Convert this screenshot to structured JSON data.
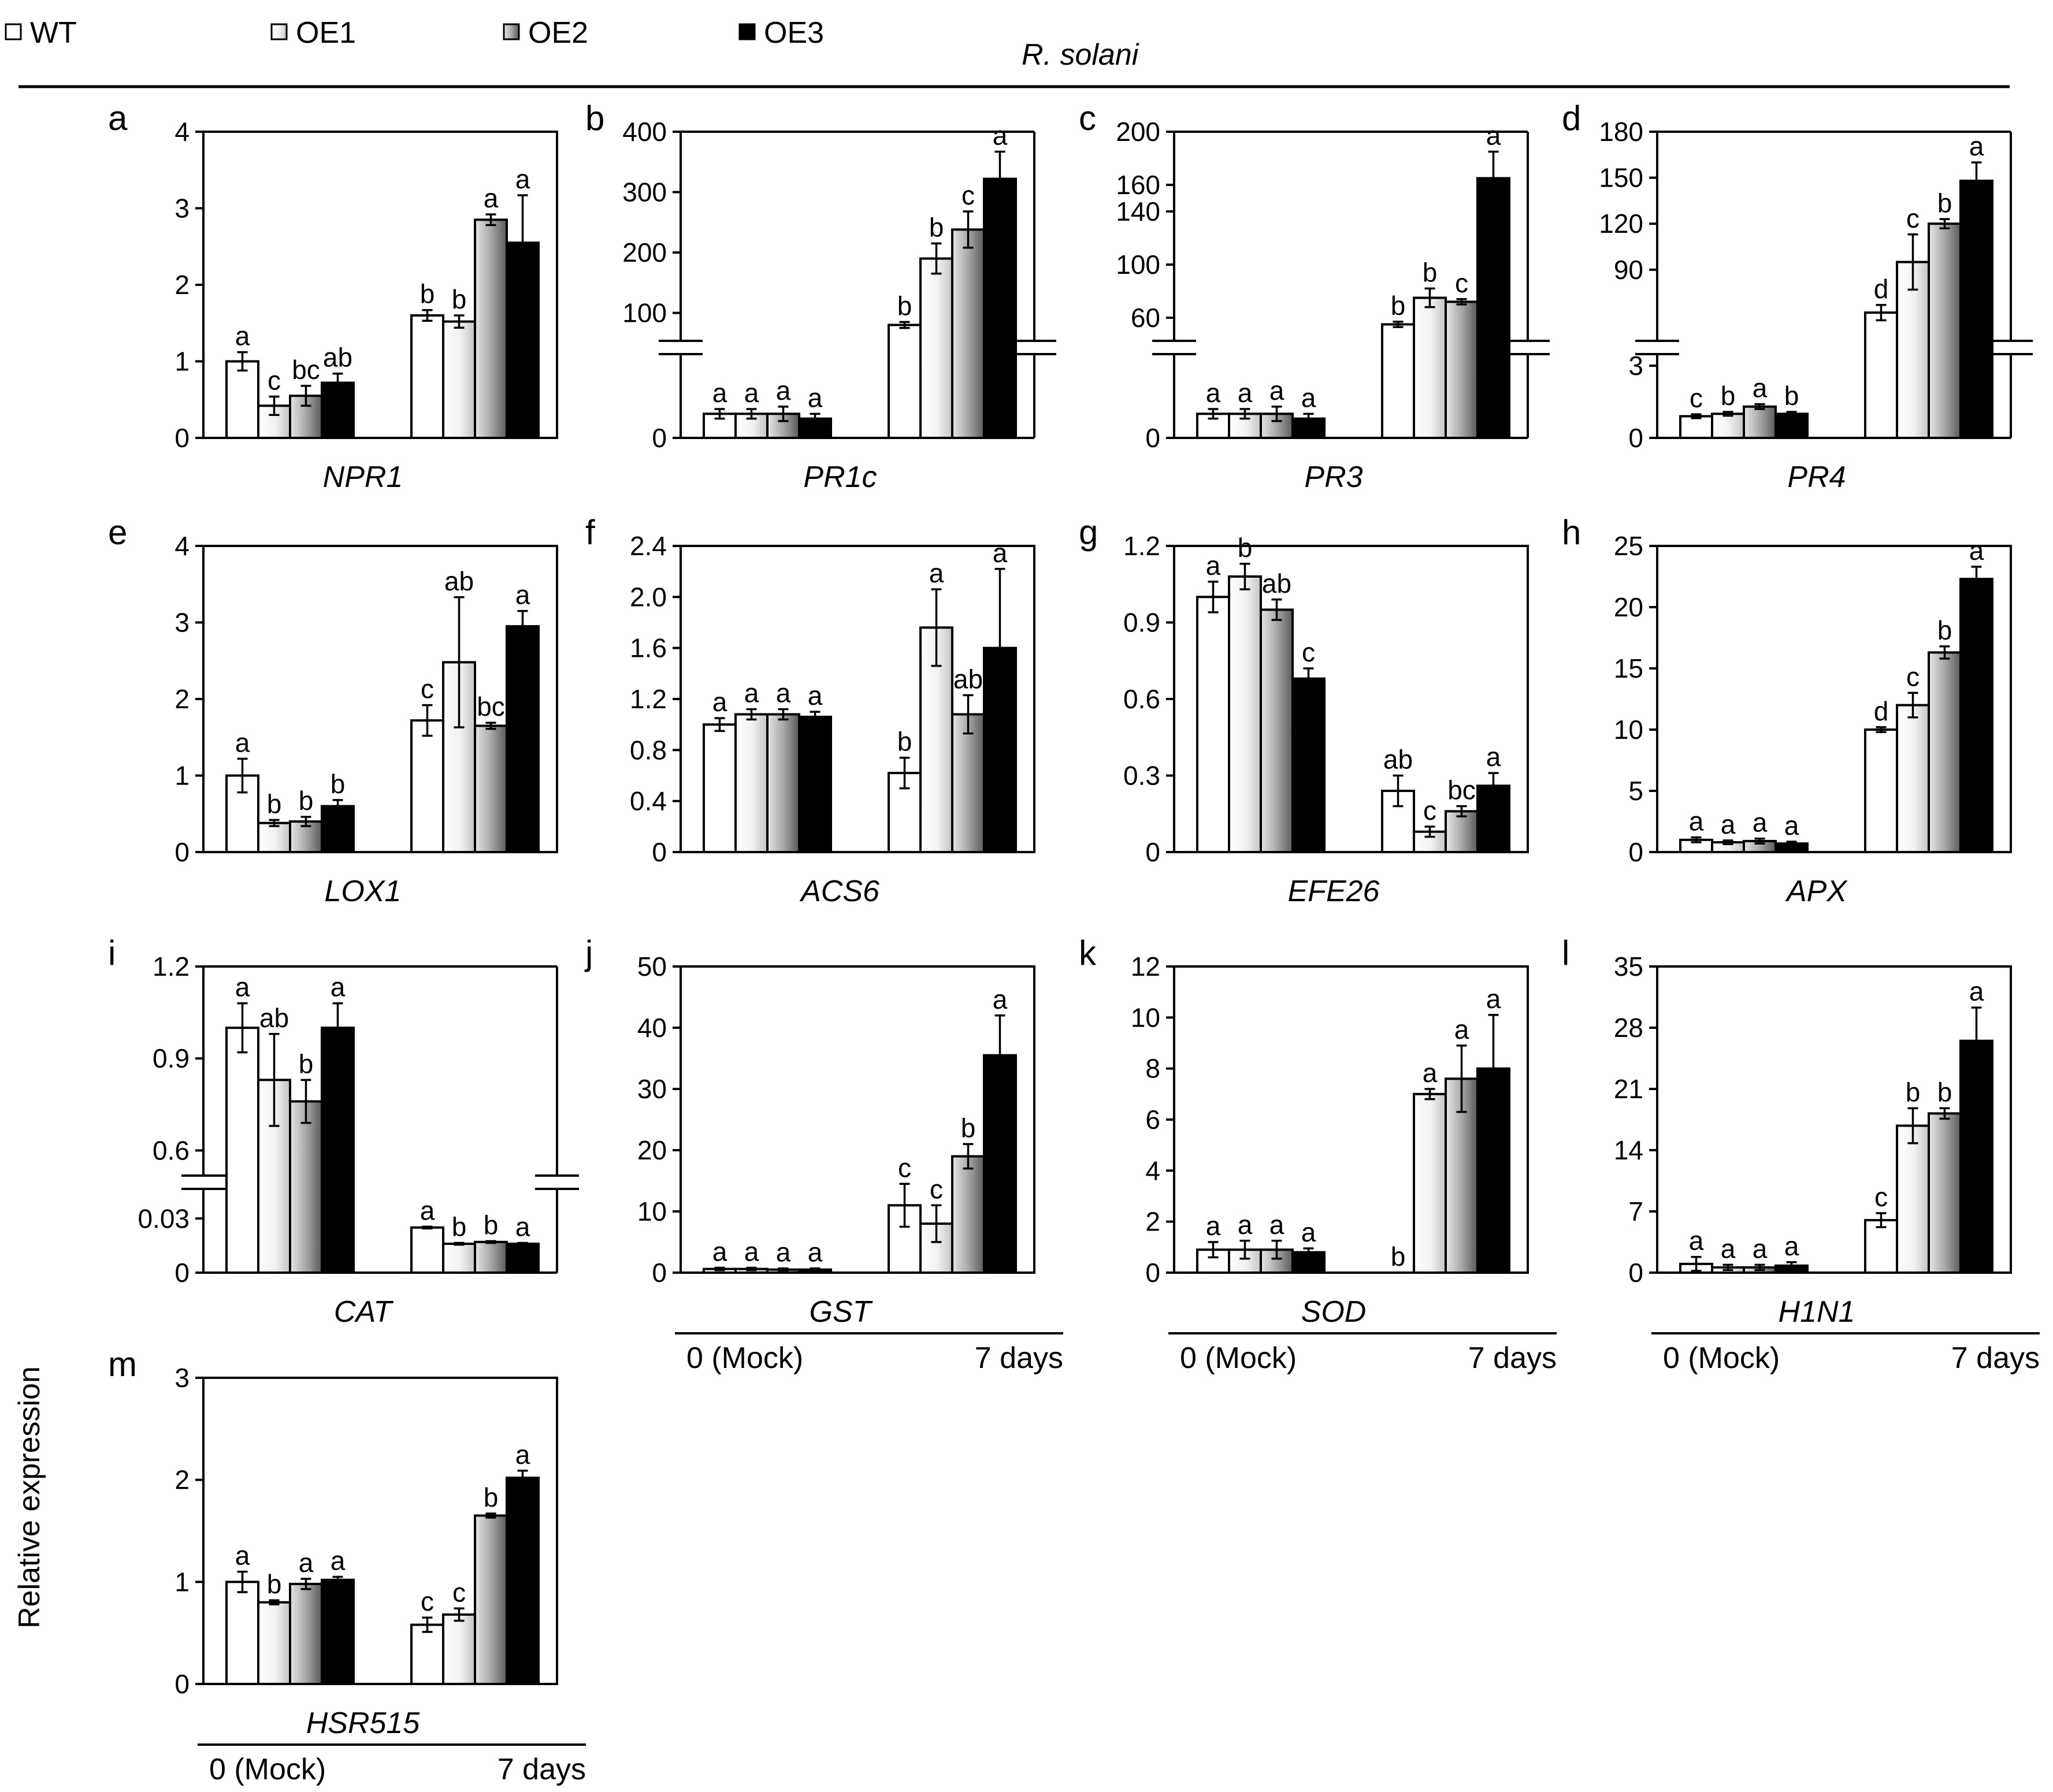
{
  "header": {
    "title": "R. solani",
    "y_axis_label": "Relative expression"
  },
  "legend": [
    {
      "name": "WT",
      "fill": "white-bar"
    },
    {
      "name": "OE1",
      "fill": "light-gradient-bar"
    },
    {
      "name": "OE2",
      "fill": "grey-gradient-bar"
    },
    {
      "name": "OE3",
      "fill": "black-bar"
    }
  ],
  "colors": {
    "wt": "#ffffff",
    "oe1_light": "#ffffff",
    "oe1_dark": "#c8c8c8",
    "oe2_light": "#e8e8e8",
    "oe2_dark": "#6e6e6e",
    "oe3": "#000000",
    "stroke": "#000000"
  },
  "time_labels": [
    "0 (Mock)",
    "7 days"
  ],
  "chart_data": [
    {
      "letter": "a",
      "type": "bar",
      "title": "NPR1",
      "categories": [
        "0 (Mock)",
        "7 days"
      ],
      "ylim": [
        0,
        4
      ],
      "yticks": [
        "0",
        "1",
        "2",
        "3",
        "4"
      ],
      "series": [
        {
          "name": "WT",
          "values": [
            1.0,
            1.6
          ],
          "errors": [
            0.12,
            0.07
          ],
          "letters": [
            "a",
            "b"
          ]
        },
        {
          "name": "OE1",
          "values": [
            0.42,
            1.52
          ],
          "errors": [
            0.12,
            0.08
          ],
          "letters": [
            "c",
            "b"
          ]
        },
        {
          "name": "OE2",
          "values": [
            0.55,
            2.85
          ],
          "errors": [
            0.13,
            0.07
          ],
          "letters": [
            "bc",
            "a"
          ]
        },
        {
          "name": "OE3",
          "values": [
            0.72,
            2.55
          ],
          "errors": [
            0.12,
            0.62
          ],
          "letters": [
            "ab",
            "a"
          ]
        }
      ]
    },
    {
      "letter": "b",
      "type": "bar",
      "title": "PR1c",
      "categories": [
        "0 (Mock)",
        "7 days"
      ],
      "broken_axis": true,
      "ylim_lower": [
        0,
        3
      ],
      "ylim_upper": [
        70,
        400
      ],
      "yticks_lower": [
        "0"
      ],
      "yticks_upper": [
        "100",
        "200",
        "300",
        "400"
      ],
      "series": [
        {
          "name": "WT",
          "values": [
            1.0,
            80
          ],
          "errors": [
            0.2,
            5
          ],
          "letters": [
            "a",
            "b"
          ]
        },
        {
          "name": "OE1",
          "values": [
            1.0,
            190
          ],
          "errors": [
            0.2,
            25
          ],
          "letters": [
            "a",
            "b"
          ]
        },
        {
          "name": "OE2",
          "values": [
            1.0,
            238
          ],
          "errors": [
            0.3,
            30
          ],
          "letters": [
            "a",
            "c"
          ]
        },
        {
          "name": "OE3",
          "values": [
            0.8,
            322
          ],
          "errors": [
            0.2,
            45
          ],
          "letters": [
            "a",
            "a"
          ]
        }
      ]
    },
    {
      "letter": "c",
      "type": "bar",
      "title": "PR3",
      "categories": [
        "0 (Mock)",
        "7 days"
      ],
      "broken_axis": true,
      "ylim_lower": [
        0,
        3
      ],
      "ylim_upper": [
        50,
        200
      ],
      "yticks_lower": [
        "0"
      ],
      "yticks_upper": [
        "60",
        "100",
        "140",
        "160",
        "200"
      ],
      "series": [
        {
          "name": "WT",
          "values": [
            1.0,
            55
          ],
          "errors": [
            0.2,
            2
          ],
          "letters": [
            "a",
            "b"
          ]
        },
        {
          "name": "OE1",
          "values": [
            1.0,
            75
          ],
          "errors": [
            0.2,
            7
          ],
          "letters": [
            "a",
            "b"
          ]
        },
        {
          "name": "OE2",
          "values": [
            1.0,
            72
          ],
          "errors": [
            0.3,
            2
          ],
          "letters": [
            "a",
            "c"
          ]
        },
        {
          "name": "OE3",
          "values": [
            0.8,
            165
          ],
          "errors": [
            0.2,
            20
          ],
          "letters": [
            "a",
            "a"
          ]
        }
      ]
    },
    {
      "letter": "d",
      "type": "bar",
      "title": "PR4",
      "categories": [
        "0 (Mock)",
        "7 days"
      ],
      "broken_axis": true,
      "ylim_lower": [
        0,
        3
      ],
      "ylim_upper": [
        50,
        180
      ],
      "yticks_lower": [
        "0",
        "3"
      ],
      "yticks_upper": [
        "90",
        "120",
        "150",
        "180"
      ],
      "series": [
        {
          "name": "WT",
          "values": [
            0.9,
            62
          ],
          "errors": [
            0.08,
            5
          ],
          "letters": [
            "c",
            "d"
          ]
        },
        {
          "name": "OE1",
          "values": [
            1.0,
            95
          ],
          "errors": [
            0.08,
            18
          ],
          "letters": [
            "b",
            "c"
          ]
        },
        {
          "name": "OE2",
          "values": [
            1.3,
            120
          ],
          "errors": [
            0.1,
            3
          ],
          "letters": [
            "a",
            "b"
          ]
        },
        {
          "name": "OE3",
          "values": [
            1.0,
            148
          ],
          "errors": [
            0.08,
            12
          ],
          "letters": [
            "b",
            "a"
          ]
        }
      ]
    },
    {
      "letter": "e",
      "type": "bar",
      "title": "LOX1",
      "categories": [
        "0 (Mock)",
        "7 days"
      ],
      "ylim": [
        0,
        4
      ],
      "yticks": [
        "0",
        "1",
        "2",
        "3",
        "4"
      ],
      "series": [
        {
          "name": "WT",
          "values": [
            1.0,
            1.72
          ],
          "errors": [
            0.22,
            0.2
          ],
          "letters": [
            "a",
            "c"
          ]
        },
        {
          "name": "OE1",
          "values": [
            0.38,
            2.48
          ],
          "errors": [
            0.04,
            0.85
          ],
          "letters": [
            "b",
            "ab"
          ]
        },
        {
          "name": "OE2",
          "values": [
            0.4,
            1.65
          ],
          "errors": [
            0.06,
            0.04
          ],
          "letters": [
            "b",
            "bc"
          ]
        },
        {
          "name": "OE3",
          "values": [
            0.6,
            2.95
          ],
          "errors": [
            0.08,
            0.2
          ],
          "letters": [
            "b",
            "a"
          ]
        }
      ]
    },
    {
      "letter": "f",
      "type": "bar",
      "title": "ACS6",
      "categories": [
        "0 (Mock)",
        "7 days"
      ],
      "ylim": [
        0,
        2.4
      ],
      "yticks": [
        "0",
        "0.4",
        "0.8",
        "1.2",
        "1.6",
        "2.0",
        "2.4"
      ],
      "series": [
        {
          "name": "WT",
          "values": [
            1.0,
            0.62
          ],
          "errors": [
            0.05,
            0.12
          ],
          "letters": [
            "a",
            "b"
          ]
        },
        {
          "name": "OE1",
          "values": [
            1.08,
            1.76
          ],
          "errors": [
            0.04,
            0.3
          ],
          "letters": [
            "a",
            "a"
          ]
        },
        {
          "name": "OE2",
          "values": [
            1.08,
            1.08
          ],
          "errors": [
            0.04,
            0.15
          ],
          "letters": [
            "a",
            "ab"
          ]
        },
        {
          "name": "OE3",
          "values": [
            1.06,
            1.6
          ],
          "errors": [
            0.04,
            0.62
          ],
          "letters": [
            "a",
            "a"
          ]
        }
      ]
    },
    {
      "letter": "g",
      "type": "bar",
      "title": "EFE26",
      "categories": [
        "0 (Mock)",
        "7 days"
      ],
      "ylim": [
        0,
        1.2
      ],
      "yticks": [
        "0",
        "0.3",
        "0.6",
        "0.9",
        "1.2"
      ],
      "series": [
        {
          "name": "WT",
          "values": [
            1.0,
            0.24
          ],
          "errors": [
            0.06,
            0.06
          ],
          "letters": [
            "a",
            "ab"
          ]
        },
        {
          "name": "OE1",
          "values": [
            1.08,
            0.08
          ],
          "errors": [
            0.05,
            0.02
          ],
          "letters": [
            "b",
            "c"
          ]
        },
        {
          "name": "OE2",
          "values": [
            0.95,
            0.16
          ],
          "errors": [
            0.04,
            0.02
          ],
          "letters": [
            "ab",
            "bc"
          ]
        },
        {
          "name": "OE3",
          "values": [
            0.68,
            0.26
          ],
          "errors": [
            0.04,
            0.05
          ],
          "letters": [
            "c",
            "a"
          ]
        }
      ]
    },
    {
      "letter": "h",
      "type": "bar",
      "title": "APX",
      "categories": [
        "0 (Mock)",
        "7 days"
      ],
      "ylim": [
        0,
        25
      ],
      "yticks": [
        "0",
        "5",
        "10",
        "15",
        "20",
        "25"
      ],
      "series": [
        {
          "name": "WT",
          "values": [
            1.0,
            10.0
          ],
          "errors": [
            0.2,
            0.2
          ],
          "letters": [
            "a",
            "d"
          ]
        },
        {
          "name": "OE1",
          "values": [
            0.8,
            12.0
          ],
          "errors": [
            0.15,
            1.0
          ],
          "letters": [
            "a",
            "c"
          ]
        },
        {
          "name": "OE2",
          "values": [
            0.9,
            16.3
          ],
          "errors": [
            0.2,
            0.5
          ],
          "letters": [
            "a",
            "b"
          ]
        },
        {
          "name": "OE3",
          "values": [
            0.7,
            22.3
          ],
          "errors": [
            0.15,
            1.0
          ],
          "letters": [
            "a",
            "a"
          ]
        }
      ]
    },
    {
      "letter": "i",
      "type": "bar",
      "title": "CAT",
      "categories": [
        "0 (Mock)",
        "7 days"
      ],
      "broken_axis": true,
      "ylim_lower": [
        0,
        0.04
      ],
      "ylim_upper": [
        0.55,
        1.2
      ],
      "yticks_lower": [
        "0",
        "0.03"
      ],
      "yticks_upper": [
        "0.6",
        "0.9",
        "1.2"
      ],
      "series": [
        {
          "name": "WT",
          "values": [
            1.0,
            0.025
          ],
          "errors": [
            0.08,
            0.0005
          ],
          "letters": [
            "a",
            "a"
          ]
        },
        {
          "name": "OE1",
          "values": [
            0.83,
            0.016
          ],
          "errors": [
            0.15,
            0.0005
          ],
          "letters": [
            "ab",
            "b"
          ]
        },
        {
          "name": "OE2",
          "values": [
            0.76,
            0.017
          ],
          "errors": [
            0.07,
            0.0005
          ],
          "letters": [
            "b",
            "b"
          ]
        },
        {
          "name": "OE3",
          "values": [
            1.0,
            0.016
          ],
          "errors": [
            0.08,
            0.0005
          ],
          "letters": [
            "a",
            "a"
          ]
        }
      ]
    },
    {
      "letter": "j",
      "type": "bar",
      "title": "GST",
      "categories": [
        "0 (Mock)",
        "7 days"
      ],
      "ylim": [
        0,
        50
      ],
      "yticks": [
        "0",
        "10",
        "20",
        "30",
        "40",
        "50"
      ],
      "series": [
        {
          "name": "WT",
          "values": [
            0.6,
            11.0
          ],
          "errors": [
            0.2,
            3.5
          ],
          "letters": [
            "a",
            "c"
          ]
        },
        {
          "name": "OE1",
          "values": [
            0.6,
            8.0
          ],
          "errors": [
            0.2,
            3.0
          ],
          "letters": [
            "a",
            "c"
          ]
        },
        {
          "name": "OE2",
          "values": [
            0.5,
            19.0
          ],
          "errors": [
            0.2,
            2.0
          ],
          "letters": [
            "a",
            "b"
          ]
        },
        {
          "name": "OE3",
          "values": [
            0.5,
            35.5
          ],
          "errors": [
            0.2,
            6.5
          ],
          "letters": [
            "a",
            "a"
          ]
        }
      ]
    },
    {
      "letter": "k",
      "type": "bar",
      "title": "SOD",
      "categories": [
        "0 (Mock)",
        "7 days"
      ],
      "ylim": [
        0,
        12
      ],
      "yticks": [
        "0",
        "2",
        "4",
        "6",
        "8",
        "10",
        "12"
      ],
      "series": [
        {
          "name": "WT",
          "values": [
            0.9,
            0.0
          ],
          "errors": [
            0.3,
            0.0
          ],
          "letters": [
            "a",
            "b"
          ]
        },
        {
          "name": "OE1",
          "values": [
            0.9,
            7.0
          ],
          "errors": [
            0.35,
            0.2
          ],
          "letters": [
            "a",
            "a"
          ]
        },
        {
          "name": "OE2",
          "values": [
            0.9,
            7.6
          ],
          "errors": [
            0.35,
            1.3
          ],
          "letters": [
            "a",
            "a"
          ]
        },
        {
          "name": "OE3",
          "values": [
            0.8,
            8.0
          ],
          "errors": [
            0.15,
            2.1
          ],
          "letters": [
            "a",
            "a"
          ]
        }
      ]
    },
    {
      "letter": "l",
      "type": "bar",
      "title": "H1N1",
      "categories": [
        "0 (Mock)",
        "7 days"
      ],
      "ylim": [
        0,
        35
      ],
      "yticks": [
        "0",
        "7",
        "14",
        "21",
        "28",
        "35"
      ],
      "series": [
        {
          "name": "WT",
          "values": [
            1.0,
            6.0
          ],
          "errors": [
            0.8,
            0.8
          ],
          "letters": [
            "a",
            "c"
          ]
        },
        {
          "name": "OE1",
          "values": [
            0.6,
            16.8
          ],
          "errors": [
            0.3,
            2.0
          ],
          "letters": [
            "a",
            "b"
          ]
        },
        {
          "name": "OE2",
          "values": [
            0.6,
            18.2
          ],
          "errors": [
            0.3,
            0.6
          ],
          "letters": [
            "a",
            "b"
          ]
        },
        {
          "name": "OE3",
          "values": [
            0.8,
            26.5
          ],
          "errors": [
            0.4,
            3.8
          ],
          "letters": [
            "a",
            "a"
          ]
        }
      ]
    },
    {
      "letter": "m",
      "type": "bar",
      "title": "HSR515",
      "categories": [
        "0 (Mock)",
        "7 days"
      ],
      "ylim": [
        0,
        3
      ],
      "yticks": [
        "0",
        "1",
        "2",
        "3"
      ],
      "series": [
        {
          "name": "WT",
          "values": [
            1.0,
            0.58
          ],
          "errors": [
            0.1,
            0.07
          ],
          "letters": [
            "a",
            "c"
          ]
        },
        {
          "name": "OE1",
          "values": [
            0.8,
            0.68
          ],
          "errors": [
            0.02,
            0.06
          ],
          "letters": [
            "b",
            "c"
          ]
        },
        {
          "name": "OE2",
          "values": [
            0.98,
            1.65
          ],
          "errors": [
            0.05,
            0.02
          ],
          "letters": [
            "a",
            "b"
          ]
        },
        {
          "name": "OE3",
          "values": [
            1.02,
            2.02
          ],
          "errors": [
            0.03,
            0.07
          ],
          "letters": [
            "a",
            "a"
          ]
        }
      ]
    }
  ]
}
